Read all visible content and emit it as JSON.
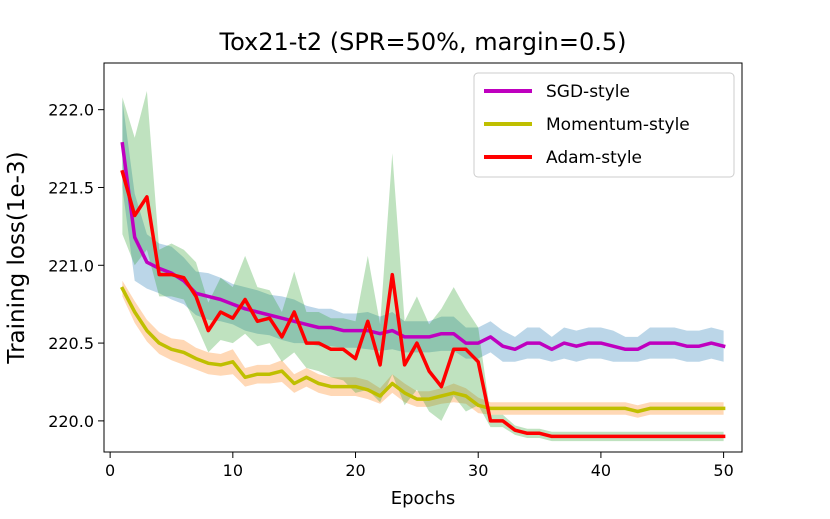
{
  "chart_data": {
    "type": "line",
    "title": "Tox21-t2 (SPR=50%, margin=0.5)",
    "xlabel": "Epochs",
    "ylabel": "Training loss(1e-3)",
    "xlim": [
      -0.5,
      51.5
    ],
    "ylim": [
      219.8,
      222.3
    ],
    "xticks": [
      0,
      10,
      20,
      30,
      40,
      50
    ],
    "xtick_labels": [
      "0",
      "10",
      "20",
      "30",
      "40",
      "50"
    ],
    "yticks": [
      220.0,
      220.5,
      221.0,
      221.5,
      222.0
    ],
    "ytick_labels": [
      "220.0",
      "220.5",
      "221.0",
      "221.5",
      "222.0"
    ],
    "grid": false,
    "legend_position": "top-right",
    "x": [
      1,
      2,
      3,
      4,
      5,
      6,
      7,
      8,
      9,
      10,
      11,
      12,
      13,
      14,
      15,
      16,
      17,
      18,
      19,
      20,
      21,
      22,
      23,
      24,
      25,
      26,
      27,
      28,
      29,
      30,
      31,
      32,
      33,
      34,
      35,
      36,
      37,
      38,
      39,
      40,
      41,
      42,
      43,
      44,
      45,
      46,
      47,
      48,
      49,
      50
    ],
    "series": [
      {
        "name": "SGD-style",
        "color": "#bf00bf",
        "band_color": "#1f77b4",
        "values": [
          221.78,
          221.18,
          221.02,
          220.98,
          220.95,
          220.9,
          220.82,
          220.8,
          220.78,
          220.75,
          220.72,
          220.7,
          220.68,
          220.66,
          220.64,
          220.62,
          220.6,
          220.6,
          220.58,
          220.58,
          220.58,
          220.56,
          220.58,
          220.54,
          220.54,
          220.54,
          220.56,
          220.56,
          220.5,
          220.5,
          220.54,
          220.48,
          220.46,
          220.5,
          220.5,
          220.46,
          220.5,
          220.48,
          220.5,
          220.5,
          220.48,
          220.46,
          220.46,
          220.5,
          220.5,
          220.5,
          220.48,
          220.48,
          220.5,
          220.48
        ],
        "lower": [
          221.5,
          220.9,
          220.85,
          220.82,
          220.78,
          220.75,
          220.68,
          220.65,
          220.64,
          220.62,
          220.58,
          220.56,
          220.55,
          220.52,
          220.5,
          220.5,
          220.48,
          220.48,
          220.47,
          220.47,
          220.46,
          220.45,
          220.46,
          220.44,
          220.44,
          220.44,
          220.45,
          220.45,
          220.4,
          220.4,
          220.44,
          220.38,
          220.38,
          220.4,
          220.4,
          220.38,
          220.4,
          220.38,
          220.4,
          220.4,
          220.38,
          220.38,
          220.38,
          220.4,
          220.4,
          220.4,
          220.38,
          220.38,
          220.4,
          220.38
        ],
        "upper": [
          222.06,
          221.46,
          221.2,
          221.14,
          221.12,
          221.05,
          220.96,
          220.95,
          220.92,
          220.88,
          220.86,
          220.84,
          220.81,
          220.8,
          220.78,
          220.74,
          220.72,
          220.72,
          220.69,
          220.69,
          220.7,
          220.67,
          220.7,
          220.64,
          220.64,
          220.64,
          220.67,
          220.67,
          220.6,
          220.6,
          220.64,
          220.58,
          220.54,
          220.6,
          220.6,
          220.54,
          220.6,
          220.58,
          220.6,
          220.6,
          220.58,
          220.54,
          220.54,
          220.6,
          220.6,
          220.6,
          220.58,
          220.58,
          220.6,
          220.58
        ]
      },
      {
        "name": "Momentum-style",
        "color": "#bfbf00",
        "band_color": "#ff7f0e",
        "values": [
          220.85,
          220.7,
          220.58,
          220.5,
          220.46,
          220.44,
          220.4,
          220.37,
          220.36,
          220.38,
          220.28,
          220.3,
          220.3,
          220.32,
          220.24,
          220.28,
          220.24,
          220.22,
          220.22,
          220.22,
          220.2,
          220.16,
          220.24,
          220.18,
          220.14,
          220.14,
          220.16,
          220.18,
          220.16,
          220.1,
          220.08,
          220.08,
          220.08,
          220.08,
          220.08,
          220.08,
          220.08,
          220.08,
          220.08,
          220.08,
          220.08,
          220.08,
          220.06,
          220.08,
          220.08,
          220.08,
          220.08,
          220.08,
          220.08,
          220.08
        ],
        "lower": [
          220.8,
          220.63,
          220.51,
          220.43,
          220.39,
          220.36,
          220.33,
          220.3,
          220.29,
          220.3,
          220.22,
          220.24,
          220.24,
          220.25,
          220.18,
          220.22,
          220.18,
          220.16,
          220.16,
          220.16,
          220.14,
          220.11,
          220.18,
          220.12,
          220.09,
          220.09,
          220.11,
          220.12,
          220.11,
          220.05,
          220.04,
          220.04,
          220.04,
          220.04,
          220.04,
          220.04,
          220.04,
          220.04,
          220.04,
          220.04,
          220.04,
          220.04,
          220.02,
          220.04,
          220.04,
          220.04,
          220.04,
          220.04,
          220.04,
          220.04
        ],
        "upper": [
          220.9,
          220.77,
          220.65,
          220.57,
          220.53,
          220.52,
          220.47,
          220.44,
          220.43,
          220.46,
          220.34,
          220.36,
          220.36,
          220.39,
          220.3,
          220.34,
          220.3,
          220.28,
          220.28,
          220.28,
          220.26,
          220.21,
          220.3,
          220.24,
          220.19,
          220.19,
          220.21,
          220.24,
          220.21,
          220.15,
          220.12,
          220.12,
          220.12,
          220.12,
          220.12,
          220.12,
          220.12,
          220.12,
          220.12,
          220.12,
          220.12,
          220.12,
          220.1,
          220.12,
          220.12,
          220.12,
          220.12,
          220.12,
          220.12,
          220.12
        ]
      },
      {
        "name": "Adam-style",
        "color": "#ff0000",
        "band_color": "#2ca02c",
        "values": [
          221.6,
          221.32,
          221.44,
          220.94,
          220.94,
          220.92,
          220.8,
          220.58,
          220.7,
          220.66,
          220.78,
          220.64,
          220.66,
          220.54,
          220.7,
          220.5,
          220.5,
          220.46,
          220.46,
          220.4,
          220.64,
          220.36,
          220.94,
          220.36,
          220.5,
          220.32,
          220.22,
          220.46,
          220.46,
          220.38,
          220.0,
          220.0,
          219.94,
          219.92,
          219.92,
          219.9,
          219.9,
          219.9,
          219.9,
          219.9,
          219.9,
          219.9,
          219.9,
          219.9,
          219.9,
          219.9,
          219.9,
          219.9,
          219.9,
          219.9
        ],
        "lower": [
          221.2,
          221.0,
          221.1,
          220.8,
          220.8,
          220.78,
          220.62,
          220.44,
          220.52,
          220.5,
          220.56,
          220.48,
          220.5,
          220.38,
          220.44,
          220.34,
          220.32,
          220.28,
          220.26,
          220.18,
          220.2,
          220.12,
          220.3,
          220.1,
          220.2,
          220.06,
          220.0,
          220.16,
          220.06,
          220.1,
          219.96,
          219.96,
          219.91,
          219.89,
          219.89,
          219.87,
          219.87,
          219.87,
          219.87,
          219.87,
          219.87,
          219.87,
          219.87,
          219.87,
          219.87,
          219.87,
          219.87,
          219.87,
          219.87,
          219.87
        ],
        "upper": [
          222.08,
          221.82,
          222.12,
          221.1,
          221.14,
          221.1,
          221.02,
          220.76,
          220.92,
          220.86,
          221.06,
          220.86,
          220.84,
          220.7,
          220.96,
          220.7,
          220.7,
          220.66,
          220.66,
          220.64,
          221.06,
          220.62,
          221.72,
          220.64,
          220.8,
          220.62,
          220.72,
          220.86,
          220.72,
          220.6,
          220.04,
          220.04,
          219.97,
          219.95,
          219.95,
          219.93,
          219.93,
          219.93,
          219.93,
          219.93,
          219.93,
          219.93,
          219.93,
          219.93,
          219.93,
          219.93,
          219.93,
          219.93,
          219.93,
          219.93
        ]
      }
    ]
  }
}
